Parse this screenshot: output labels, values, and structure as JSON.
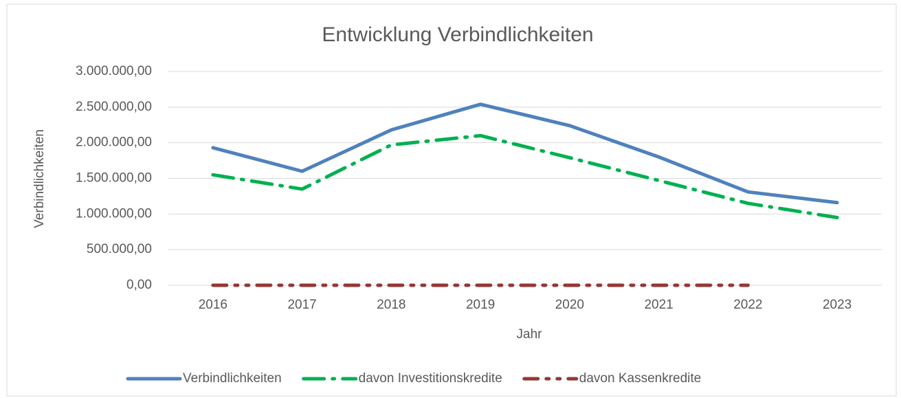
{
  "chart_data": {
    "type": "line",
    "title": "Entwicklung Verbindlichkeiten",
    "x_label": "Jahr",
    "y_label": "Verbindlichkeiten",
    "categories": [
      "2016",
      "2017",
      "2018",
      "2019",
      "2020",
      "2021",
      "2022",
      "2023"
    ],
    "series": [
      {
        "name": "Verbindlichkeiten",
        "color": "#4f81bd",
        "line_style": "solid",
        "values": [
          1930000,
          1600000,
          2180000,
          2540000,
          2240000,
          1800000,
          1310000,
          1160000
        ]
      },
      {
        "name": "davon Investitionskredite",
        "color": "#00b050",
        "line_style": "long-dash-dot",
        "values": [
          1550000,
          1350000,
          1970000,
          2100000,
          1790000,
          1470000,
          1150000,
          950000
        ]
      },
      {
        "name": "davon Kassenkredite",
        "color": "#953735",
        "line_style": "dash-dot-dot",
        "values": [
          0,
          0,
          0,
          0,
          0,
          0,
          0,
          null
        ]
      }
    ],
    "ylim": [
      0,
      3000000
    ],
    "yticks": [
      {
        "value": 0,
        "label": "0,00"
      },
      {
        "value": 500000,
        "label": "500.000,00"
      },
      {
        "value": 1000000,
        "label": "1.000.000,00"
      },
      {
        "value": 1500000,
        "label": "1.500.000,00"
      },
      {
        "value": 2000000,
        "label": "2.000.000,00"
      },
      {
        "value": 2500000,
        "label": "2.500.000,00"
      },
      {
        "value": 3000000,
        "label": "3.000.000,00"
      }
    ],
    "grid": true,
    "legend": "bottom"
  }
}
